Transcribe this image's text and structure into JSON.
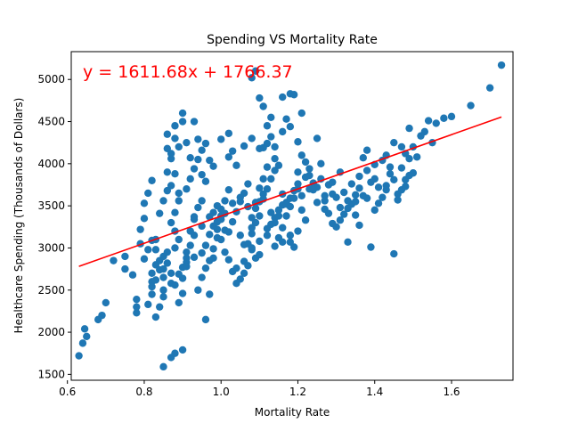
{
  "chart_data": {
    "type": "scatter",
    "title": "Spending VS Mortality Rate",
    "xlabel": "Mortality Rate",
    "ylabel": "Healthcare Spending (Thousands of Dollars)",
    "xlim": [
      0.61,
      1.76
    ],
    "ylim": [
      1430,
      5330
    ],
    "xticks": [
      0.6,
      0.8,
      1.0,
      1.2,
      1.4,
      1.6
    ],
    "xtick_labels": [
      "0.6",
      "0.8",
      "1.0",
      "1.2",
      "1.4",
      "1.6"
    ],
    "yticks": [
      1500,
      2000,
      2500,
      3000,
      3500,
      4000,
      4500,
      5000
    ],
    "ytick_labels": [
      "1500",
      "2000",
      "2500",
      "3000",
      "3500",
      "4000",
      "4500",
      "5000"
    ],
    "grid": false,
    "marker_color": "#1f77b4",
    "line_color": "#ff0000",
    "annotation": "y = 1611.68x + 1766.37",
    "regression": {
      "slope": 1611.68,
      "intercept": 1766.37,
      "x_range": [
        0.63,
        1.73
      ]
    },
    "series": [
      {
        "points": [
          [
            0.63,
            1720
          ],
          [
            0.64,
            1870
          ],
          [
            0.65,
            1950
          ],
          [
            0.645,
            2040
          ],
          [
            0.68,
            2150
          ],
          [
            0.69,
            2200
          ],
          [
            0.7,
            2350
          ],
          [
            0.72,
            2850
          ],
          [
            0.75,
            2900
          ],
          [
            0.75,
            2750
          ],
          [
            0.77,
            2680
          ],
          [
            0.78,
            2230
          ],
          [
            0.78,
            2300
          ],
          [
            0.78,
            2390
          ],
          [
            0.79,
            3050
          ],
          [
            0.8,
            3350
          ],
          [
            0.8,
            3530
          ],
          [
            0.81,
            3650
          ],
          [
            0.82,
            2600
          ],
          [
            0.82,
            2450
          ],
          [
            0.82,
            2700
          ],
          [
            0.82,
            3800
          ],
          [
            0.83,
            3100
          ],
          [
            0.83,
            2980
          ],
          [
            0.84,
            2850
          ],
          [
            0.84,
            2300
          ],
          [
            0.85,
            1590
          ],
          [
            0.85,
            2500
          ],
          [
            0.85,
            2650
          ],
          [
            0.85,
            2750
          ],
          [
            0.85,
            2900
          ],
          [
            0.86,
            4180
          ],
          [
            0.86,
            3900
          ],
          [
            0.87,
            4060
          ],
          [
            0.87,
            3740
          ],
          [
            0.88,
            4450
          ],
          [
            0.88,
            4300
          ],
          [
            0.89,
            2350
          ],
          [
            0.88,
            3200
          ],
          [
            0.89,
            3650
          ],
          [
            0.87,
            1700
          ],
          [
            0.88,
            1750
          ],
          [
            0.9,
            1790
          ],
          [
            0.9,
            4600
          ],
          [
            0.91,
            4250
          ],
          [
            0.92,
            4070
          ],
          [
            0.93,
            4500
          ],
          [
            0.94,
            4290
          ],
          [
            0.95,
            3870
          ],
          [
            0.96,
            3790
          ],
          [
            0.96,
            2150
          ],
          [
            0.97,
            2450
          ],
          [
            0.98,
            2880
          ],
          [
            0.99,
            3120
          ],
          [
            1.0,
            3340
          ],
          [
            1.0,
            3460
          ],
          [
            1.01,
            3560
          ],
          [
            1.02,
            3690
          ],
          [
            1.02,
            4080
          ],
          [
            1.03,
            4150
          ],
          [
            1.04,
            2580
          ],
          [
            1.05,
            2630
          ],
          [
            1.06,
            2700
          ],
          [
            1.07,
            2790
          ],
          [
            1.07,
            3050
          ],
          [
            1.08,
            3170
          ],
          [
            1.08,
            3240
          ],
          [
            1.09,
            3300
          ],
          [
            1.1,
            3380
          ],
          [
            1.1,
            3710
          ],
          [
            1.11,
            3820
          ],
          [
            1.11,
            4190
          ],
          [
            1.12,
            4240
          ],
          [
            1.12,
            4450
          ],
          [
            1.13,
            4550
          ],
          [
            1.14,
            3920
          ],
          [
            1.15,
            3980
          ],
          [
            1.16,
            3640
          ],
          [
            1.17,
            3540
          ],
          [
            1.18,
            3070
          ],
          [
            1.19,
            3010
          ],
          [
            1.2,
            3200
          ],
          [
            1.2,
            3900
          ],
          [
            1.21,
            4100
          ],
          [
            1.22,
            4020
          ],
          [
            1.23,
            3860
          ],
          [
            1.24,
            3770
          ],
          [
            1.25,
            4300
          ],
          [
            1.26,
            4000
          ],
          [
            1.27,
            3460
          ],
          [
            1.28,
            3410
          ],
          [
            1.29,
            3290
          ],
          [
            1.3,
            3250
          ],
          [
            1.31,
            3330
          ],
          [
            1.32,
            3400
          ],
          [
            1.33,
            3070
          ],
          [
            1.34,
            3520
          ],
          [
            1.35,
            3630
          ],
          [
            1.36,
            3710
          ],
          [
            1.37,
            4070
          ],
          [
            1.38,
            4160
          ],
          [
            1.39,
            3010
          ],
          [
            1.4,
            3450
          ],
          [
            1.4,
            3820
          ],
          [
            1.42,
            3600
          ],
          [
            1.43,
            3740
          ],
          [
            1.44,
            3960
          ],
          [
            1.45,
            2930
          ],
          [
            1.46,
            3570
          ],
          [
            1.47,
            3690
          ],
          [
            1.48,
            3810
          ],
          [
            1.48,
            4120
          ],
          [
            1.49,
            4420
          ],
          [
            1.5,
            4200
          ],
          [
            1.51,
            4080
          ],
          [
            1.53,
            4380
          ],
          [
            1.55,
            4250
          ],
          [
            1.56,
            4480
          ],
          [
            1.58,
            4540
          ],
          [
            1.6,
            4560
          ],
          [
            1.65,
            4690
          ],
          [
            1.7,
            4900
          ],
          [
            1.73,
            5170
          ],
          [
            1.08,
            5020
          ],
          [
            1.09,
            5100
          ],
          [
            1.1,
            4780
          ],
          [
            1.11,
            4680
          ],
          [
            1.13,
            4320
          ],
          [
            1.14,
            4200
          ],
          [
            1.16,
            4790
          ],
          [
            1.17,
            4530
          ],
          [
            1.18,
            4830
          ],
          [
            1.19,
            4820
          ],
          [
            1.21,
            4600
          ],
          [
            0.83,
            2800
          ],
          [
            0.86,
            2950
          ],
          [
            0.88,
            3000
          ],
          [
            0.89,
            3100
          ],
          [
            0.91,
            2950
          ],
          [
            0.92,
            3200
          ],
          [
            0.93,
            3340
          ],
          [
            0.94,
            3480
          ],
          [
            0.95,
            3560
          ],
          [
            0.97,
            3370
          ],
          [
            0.98,
            3420
          ],
          [
            0.99,
            3500
          ],
          [
            1.01,
            3210
          ],
          [
            1.03,
            3310
          ],
          [
            1.05,
            3150
          ],
          [
            1.06,
            3040
          ],
          [
            1.08,
            2980
          ],
          [
            1.09,
            2880
          ],
          [
            1.1,
            2920
          ],
          [
            1.12,
            3150
          ],
          [
            1.13,
            3280
          ],
          [
            1.14,
            3360
          ],
          [
            1.15,
            3450
          ],
          [
            1.16,
            3510
          ],
          [
            1.18,
            3590
          ],
          [
            1.19,
            3680
          ],
          [
            1.2,
            3760
          ],
          [
            1.22,
            3840
          ],
          [
            1.23,
            3940
          ],
          [
            1.25,
            3720
          ],
          [
            1.27,
            3560
          ],
          [
            1.29,
            3640
          ],
          [
            1.31,
            3480
          ],
          [
            1.33,
            3560
          ],
          [
            1.35,
            3390
          ],
          [
            1.36,
            3270
          ],
          [
            1.38,
            3590
          ],
          [
            1.41,
            3720
          ],
          [
            1.43,
            4100
          ],
          [
            1.45,
            4250
          ],
          [
            1.47,
            3950
          ],
          [
            1.49,
            3860
          ],
          [
            1.52,
            4330
          ],
          [
            1.54,
            4510
          ],
          [
            0.79,
            3220
          ],
          [
            0.8,
            2870
          ],
          [
            0.81,
            2980
          ],
          [
            0.82,
            3090
          ],
          [
            0.84,
            3410
          ],
          [
            0.85,
            3560
          ],
          [
            0.86,
            3680
          ],
          [
            0.87,
            3300
          ],
          [
            0.88,
            3420
          ],
          [
            0.89,
            3560
          ],
          [
            0.9,
            2640
          ],
          [
            0.9,
            2770
          ],
          [
            0.91,
            2880
          ],
          [
            0.92,
            3030
          ],
          [
            0.93,
            3150
          ],
          [
            0.94,
            2500
          ],
          [
            0.95,
            2650
          ],
          [
            0.96,
            2760
          ],
          [
            0.97,
            2850
          ],
          [
            0.98,
            2990
          ],
          [
            0.99,
            3220
          ],
          [
            1.0,
            3100
          ],
          [
            1.01,
            2950
          ],
          [
            1.02,
            2860
          ],
          [
            1.03,
            2720
          ],
          [
            1.04,
            3430
          ],
          [
            1.05,
            3550
          ],
          [
            1.06,
            3650
          ],
          [
            1.07,
            3760
          ],
          [
            1.08,
            3360
          ],
          [
            1.09,
            3470
          ],
          [
            1.1,
            3550
          ],
          [
            1.11,
            3640
          ],
          [
            1.12,
            3700
          ],
          [
            1.13,
            3820
          ],
          [
            1.14,
            3020
          ],
          [
            1.15,
            3120
          ],
          [
            1.16,
            3240
          ],
          [
            1.17,
            3380
          ],
          [
            1.18,
            3490
          ],
          [
            1.19,
            3590
          ],
          [
            1.2,
            3700
          ],
          [
            1.21,
            3450
          ],
          [
            1.22,
            3330
          ],
          [
            1.24,
            3690
          ],
          [
            1.26,
            3820
          ],
          [
            1.28,
            3750
          ],
          [
            1.3,
            3600
          ],
          [
            1.32,
            3660
          ],
          [
            1.34,
            3760
          ],
          [
            1.36,
            3850
          ],
          [
            1.38,
            3920
          ],
          [
            1.4,
            3990
          ],
          [
            1.42,
            4040
          ],
          [
            1.44,
            3880
          ],
          [
            1.46,
            3640
          ],
          [
            1.48,
            3730
          ],
          [
            1.5,
            3890
          ],
          [
            0.86,
            4350
          ],
          [
            0.87,
            4120
          ],
          [
            0.88,
            3880
          ],
          [
            0.89,
            4200
          ],
          [
            0.9,
            4500
          ],
          [
            0.91,
            3700
          ],
          [
            0.92,
            3820
          ],
          [
            0.93,
            3940
          ],
          [
            0.94,
            4050
          ],
          [
            0.95,
            4160
          ],
          [
            0.96,
            4240
          ],
          [
            0.97,
            4040
          ],
          [
            0.98,
            3970
          ],
          [
            1.0,
            4290
          ],
          [
            1.02,
            4360
          ],
          [
            1.04,
            3980
          ],
          [
            1.06,
            4210
          ],
          [
            1.08,
            4300
          ],
          [
            1.1,
            4180
          ],
          [
            1.12,
            3960
          ],
          [
            1.14,
            4060
          ],
          [
            1.16,
            4380
          ],
          [
            1.18,
            4440
          ],
          [
            1.2,
            4260
          ],
          [
            0.82,
            2540
          ],
          [
            0.83,
            2620
          ],
          [
            0.84,
            2740
          ],
          [
            0.86,
            2820
          ],
          [
            0.87,
            2700
          ],
          [
            0.88,
            2560
          ],
          [
            0.9,
            2460
          ],
          [
            0.91,
            2830
          ],
          [
            0.93,
            2890
          ],
          [
            0.95,
            2940
          ],
          [
            0.96,
            3030
          ],
          [
            0.98,
            3260
          ],
          [
            1.0,
            3380
          ],
          [
            1.02,
            3190
          ],
          [
            1.04,
            2760
          ],
          [
            1.06,
            2840
          ],
          [
            1.08,
            3000
          ],
          [
            1.1,
            3080
          ],
          [
            1.12,
            3230
          ],
          [
            1.14,
            3300
          ],
          [
            1.16,
            3070
          ],
          [
            1.18,
            3150
          ],
          [
            0.81,
            2330
          ],
          [
            0.83,
            2180
          ],
          [
            0.85,
            2420
          ],
          [
            0.87,
            2580
          ],
          [
            0.89,
            2690
          ],
          [
            0.91,
            2780
          ],
          [
            0.93,
            3370
          ],
          [
            0.95,
            3260
          ],
          [
            0.97,
            3160
          ],
          [
            0.99,
            3310
          ],
          [
            1.01,
            3410
          ],
          [
            1.03,
            3530
          ],
          [
            1.05,
            3600
          ],
          [
            1.07,
            3490
          ],
          [
            1.09,
            3540
          ],
          [
            1.11,
            3580
          ],
          [
            1.13,
            3420
          ],
          [
            1.15,
            3380
          ],
          [
            1.17,
            3520
          ],
          [
            1.21,
            3620
          ],
          [
            1.23,
            3700
          ],
          [
            1.25,
            3540
          ],
          [
            1.27,
            3620
          ],
          [
            1.29,
            3780
          ],
          [
            1.31,
            3900
          ],
          [
            1.33,
            3470
          ],
          [
            1.35,
            3550
          ],
          [
            1.37,
            3620
          ],
          [
            1.39,
            3780
          ],
          [
            1.41,
            3530
          ],
          [
            1.43,
            3690
          ],
          [
            1.45,
            3810
          ],
          [
            1.47,
            4200
          ],
          [
            1.49,
            4060
          ]
        ]
      }
    ]
  }
}
